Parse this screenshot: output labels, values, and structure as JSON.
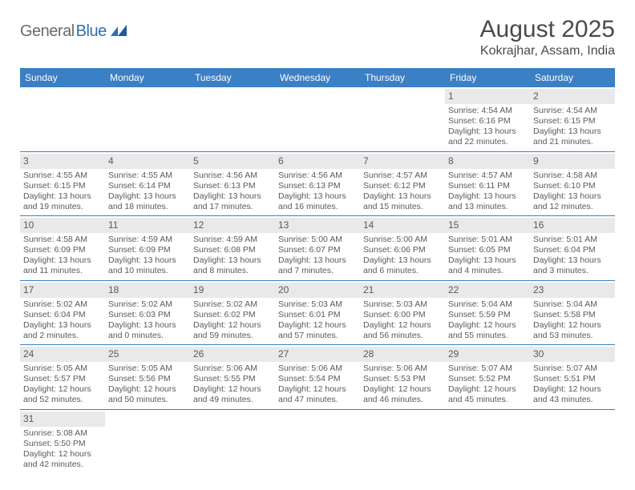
{
  "brand": {
    "part1": "General",
    "part2": "Blue"
  },
  "title": "August 2025",
  "location": "Kokrajhar, Assam, India",
  "colors": {
    "header_bg": "#3b7fc4",
    "header_text": "#ffffff",
    "daynum_bg": "#e9e9e9",
    "row_border": "#3b7fc4",
    "body_text": "#5a5a5a",
    "logo_gray": "#6b6b6b",
    "logo_blue": "#2f6fb3"
  },
  "day_headers": [
    "Sunday",
    "Monday",
    "Tuesday",
    "Wednesday",
    "Thursday",
    "Friday",
    "Saturday"
  ],
  "weeks": [
    [
      null,
      null,
      null,
      null,
      null,
      {
        "n": "1",
        "sr": "Sunrise: 4:54 AM",
        "ss": "Sunset: 6:16 PM",
        "d1": "Daylight: 13 hours",
        "d2": "and 22 minutes."
      },
      {
        "n": "2",
        "sr": "Sunrise: 4:54 AM",
        "ss": "Sunset: 6:15 PM",
        "d1": "Daylight: 13 hours",
        "d2": "and 21 minutes."
      }
    ],
    [
      {
        "n": "3",
        "sr": "Sunrise: 4:55 AM",
        "ss": "Sunset: 6:15 PM",
        "d1": "Daylight: 13 hours",
        "d2": "and 19 minutes."
      },
      {
        "n": "4",
        "sr": "Sunrise: 4:55 AM",
        "ss": "Sunset: 6:14 PM",
        "d1": "Daylight: 13 hours",
        "d2": "and 18 minutes."
      },
      {
        "n": "5",
        "sr": "Sunrise: 4:56 AM",
        "ss": "Sunset: 6:13 PM",
        "d1": "Daylight: 13 hours",
        "d2": "and 17 minutes."
      },
      {
        "n": "6",
        "sr": "Sunrise: 4:56 AM",
        "ss": "Sunset: 6:13 PM",
        "d1": "Daylight: 13 hours",
        "d2": "and 16 minutes."
      },
      {
        "n": "7",
        "sr": "Sunrise: 4:57 AM",
        "ss": "Sunset: 6:12 PM",
        "d1": "Daylight: 13 hours",
        "d2": "and 15 minutes."
      },
      {
        "n": "8",
        "sr": "Sunrise: 4:57 AM",
        "ss": "Sunset: 6:11 PM",
        "d1": "Daylight: 13 hours",
        "d2": "and 13 minutes."
      },
      {
        "n": "9",
        "sr": "Sunrise: 4:58 AM",
        "ss": "Sunset: 6:10 PM",
        "d1": "Daylight: 13 hours",
        "d2": "and 12 minutes."
      }
    ],
    [
      {
        "n": "10",
        "sr": "Sunrise: 4:58 AM",
        "ss": "Sunset: 6:09 PM",
        "d1": "Daylight: 13 hours",
        "d2": "and 11 minutes."
      },
      {
        "n": "11",
        "sr": "Sunrise: 4:59 AM",
        "ss": "Sunset: 6:09 PM",
        "d1": "Daylight: 13 hours",
        "d2": "and 10 minutes."
      },
      {
        "n": "12",
        "sr": "Sunrise: 4:59 AM",
        "ss": "Sunset: 6:08 PM",
        "d1": "Daylight: 13 hours",
        "d2": "and 8 minutes."
      },
      {
        "n": "13",
        "sr": "Sunrise: 5:00 AM",
        "ss": "Sunset: 6:07 PM",
        "d1": "Daylight: 13 hours",
        "d2": "and 7 minutes."
      },
      {
        "n": "14",
        "sr": "Sunrise: 5:00 AM",
        "ss": "Sunset: 6:06 PM",
        "d1": "Daylight: 13 hours",
        "d2": "and 6 minutes."
      },
      {
        "n": "15",
        "sr": "Sunrise: 5:01 AM",
        "ss": "Sunset: 6:05 PM",
        "d1": "Daylight: 13 hours",
        "d2": "and 4 minutes."
      },
      {
        "n": "16",
        "sr": "Sunrise: 5:01 AM",
        "ss": "Sunset: 6:04 PM",
        "d1": "Daylight: 13 hours",
        "d2": "and 3 minutes."
      }
    ],
    [
      {
        "n": "17",
        "sr": "Sunrise: 5:02 AM",
        "ss": "Sunset: 6:04 PM",
        "d1": "Daylight: 13 hours",
        "d2": "and 2 minutes."
      },
      {
        "n": "18",
        "sr": "Sunrise: 5:02 AM",
        "ss": "Sunset: 6:03 PM",
        "d1": "Daylight: 13 hours",
        "d2": "and 0 minutes."
      },
      {
        "n": "19",
        "sr": "Sunrise: 5:02 AM",
        "ss": "Sunset: 6:02 PM",
        "d1": "Daylight: 12 hours",
        "d2": "and 59 minutes."
      },
      {
        "n": "20",
        "sr": "Sunrise: 5:03 AM",
        "ss": "Sunset: 6:01 PM",
        "d1": "Daylight: 12 hours",
        "d2": "and 57 minutes."
      },
      {
        "n": "21",
        "sr": "Sunrise: 5:03 AM",
        "ss": "Sunset: 6:00 PM",
        "d1": "Daylight: 12 hours",
        "d2": "and 56 minutes."
      },
      {
        "n": "22",
        "sr": "Sunrise: 5:04 AM",
        "ss": "Sunset: 5:59 PM",
        "d1": "Daylight: 12 hours",
        "d2": "and 55 minutes."
      },
      {
        "n": "23",
        "sr": "Sunrise: 5:04 AM",
        "ss": "Sunset: 5:58 PM",
        "d1": "Daylight: 12 hours",
        "d2": "and 53 minutes."
      }
    ],
    [
      {
        "n": "24",
        "sr": "Sunrise: 5:05 AM",
        "ss": "Sunset: 5:57 PM",
        "d1": "Daylight: 12 hours",
        "d2": "and 52 minutes."
      },
      {
        "n": "25",
        "sr": "Sunrise: 5:05 AM",
        "ss": "Sunset: 5:56 PM",
        "d1": "Daylight: 12 hours",
        "d2": "and 50 minutes."
      },
      {
        "n": "26",
        "sr": "Sunrise: 5:06 AM",
        "ss": "Sunset: 5:55 PM",
        "d1": "Daylight: 12 hours",
        "d2": "and 49 minutes."
      },
      {
        "n": "27",
        "sr": "Sunrise: 5:06 AM",
        "ss": "Sunset: 5:54 PM",
        "d1": "Daylight: 12 hours",
        "d2": "and 47 minutes."
      },
      {
        "n": "28",
        "sr": "Sunrise: 5:06 AM",
        "ss": "Sunset: 5:53 PM",
        "d1": "Daylight: 12 hours",
        "d2": "and 46 minutes."
      },
      {
        "n": "29",
        "sr": "Sunrise: 5:07 AM",
        "ss": "Sunset: 5:52 PM",
        "d1": "Daylight: 12 hours",
        "d2": "and 45 minutes."
      },
      {
        "n": "30",
        "sr": "Sunrise: 5:07 AM",
        "ss": "Sunset: 5:51 PM",
        "d1": "Daylight: 12 hours",
        "d2": "and 43 minutes."
      }
    ],
    [
      {
        "n": "31",
        "sr": "Sunrise: 5:08 AM",
        "ss": "Sunset: 5:50 PM",
        "d1": "Daylight: 12 hours",
        "d2": "and 42 minutes."
      },
      null,
      null,
      null,
      null,
      null,
      null
    ]
  ]
}
